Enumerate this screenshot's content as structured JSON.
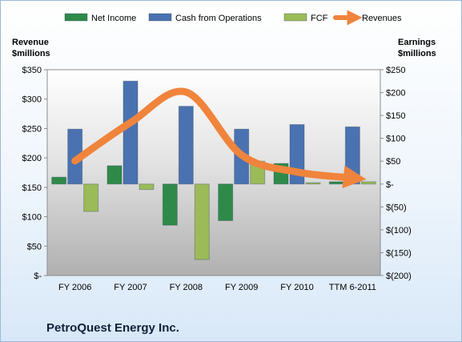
{
  "chart_data": {
    "type": "bar",
    "title": "PetroQuest Energy Inc.",
    "categories": [
      "FY 2006",
      "FY 2007",
      "FY 2008",
      "FY 2009",
      "FY 2010",
      "TTM 6-2011"
    ],
    "left_axis": {
      "label_line1": "Revenue",
      "label_line2": "$millions",
      "range": [
        0,
        350
      ],
      "ticks": [
        0,
        50,
        100,
        150,
        200,
        250,
        300,
        350
      ],
      "tick_labels": [
        "$-",
        "$50",
        "$100",
        "$150",
        "$200",
        "$250",
        "$300",
        "$350"
      ]
    },
    "right_axis": {
      "label_line1": "Earnings",
      "label_line2": "$millions",
      "range": [
        -200,
        250
      ],
      "ticks": [
        -200,
        -150,
        -100,
        -50,
        0,
        50,
        100,
        150,
        200,
        250
      ],
      "tick_labels": [
        "$(200)",
        "$(150)",
        "$(100)",
        "$(50)",
        "$-",
        "$50",
        "$100",
        "$150",
        "$200",
        "$250"
      ]
    },
    "series": [
      {
        "name": "Net Income",
        "axis": "right",
        "kind": "bar",
        "color": "#2f8a4a",
        "values": [
          15,
          40,
          -90,
          -80,
          45,
          5
        ]
      },
      {
        "name": "Cash from Operations",
        "axis": "right",
        "kind": "bar",
        "color": "#4a72b0",
        "values": [
          120,
          225,
          170,
          120,
          130,
          125
        ]
      },
      {
        "name": "FCF",
        "axis": "right",
        "kind": "bar",
        "color": "#9bbb59",
        "values": [
          -60,
          -12,
          -165,
          50,
          3,
          5
        ]
      },
      {
        "name": "Revenues",
        "axis": "left",
        "kind": "line",
        "color": "#f0843c",
        "values": [
          195,
          260,
          312,
          205,
          176,
          166
        ]
      }
    ],
    "legend_position": "top",
    "grid": false
  }
}
